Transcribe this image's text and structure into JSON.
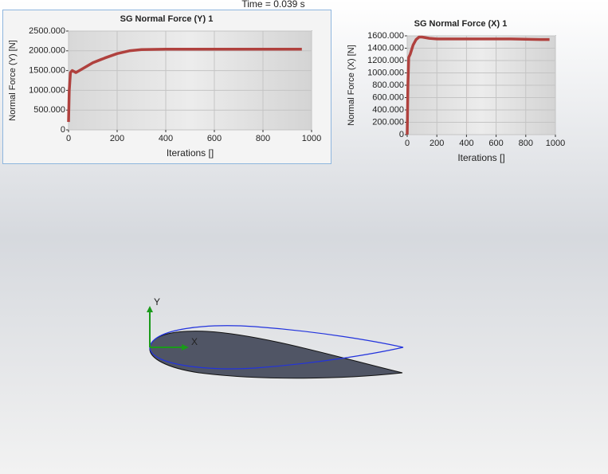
{
  "status": {
    "time": "Time = 0.039 s"
  },
  "triad": {
    "x": "X",
    "y": "Y"
  },
  "chart_data": [
    {
      "type": "line",
      "title": "SG Normal Force (Y) 1",
      "x_label": "Iterations []",
      "y_label": "Normal Force (Y) [N]",
      "grid": true,
      "xlim": [
        0,
        1000
      ],
      "xticks": [
        0,
        200,
        400,
        600,
        800,
        1000
      ],
      "ylim": [
        0,
        2500
      ],
      "yticks": [
        0,
        {
          "value": 500,
          "label": "500.000"
        },
        {
          "value": 1000,
          "label": "1000.000"
        },
        {
          "value": 1500,
          "label": "1500.000"
        },
        {
          "value": 2000,
          "label": "2000.000"
        },
        {
          "value": 2500,
          "label": "2500.000"
        }
      ],
      "x": [
        0,
        3,
        8,
        15,
        30,
        50,
        100,
        150,
        200,
        250,
        300,
        400,
        500,
        600,
        700,
        800,
        900,
        960
      ],
      "series": [
        {
          "name": "SG Normal Force (Y) 1",
          "color": "#b0413e",
          "values": [
            200,
            1000,
            1450,
            1500,
            1450,
            1520,
            1700,
            1820,
            1930,
            2000,
            2030,
            2040,
            2040,
            2040,
            2040,
            2040,
            2040,
            2040
          ]
        }
      ]
    },
    {
      "type": "line",
      "title": "SG Normal Force (X) 1",
      "x_label": "Iterations []",
      "y_label": "Normal Force (X) [N]",
      "grid": true,
      "xlim": [
        0,
        1000
      ],
      "xticks": [
        0,
        200,
        400,
        600,
        800,
        1000
      ],
      "ylim": [
        0,
        1600
      ],
      "yticks": [
        0,
        {
          "value": 200,
          "label": "200.000"
        },
        {
          "value": 400,
          "label": "400.000"
        },
        {
          "value": 600,
          "label": "600.000"
        },
        {
          "value": 800,
          "label": "800.000"
        },
        {
          "value": 1000,
          "label": "1000.000"
        },
        {
          "value": 1200,
          "label": "1200.000"
        },
        {
          "value": 1400,
          "label": "1400.000"
        },
        {
          "value": 1600,
          "label": "1600.000"
        }
      ],
      "x": [
        0,
        5,
        10,
        20,
        40,
        60,
        80,
        100,
        150,
        200,
        300,
        500,
        700,
        900,
        960
      ],
      "series": [
        {
          "name": "SG Normal Force (X) 1",
          "color": "#b0413e",
          "values": [
            0,
            800,
            1250,
            1300,
            1450,
            1540,
            1580,
            1580,
            1560,
            1550,
            1550,
            1550,
            1550,
            1540,
            1540
          ]
        }
      ]
    }
  ]
}
